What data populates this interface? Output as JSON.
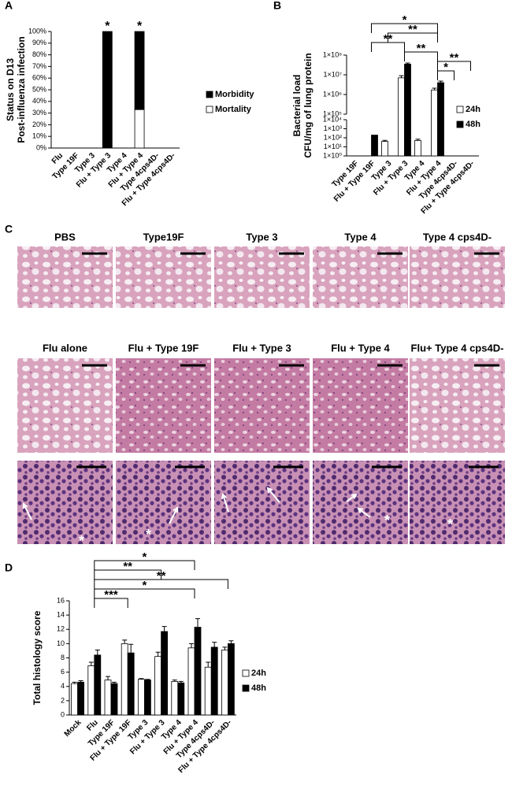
{
  "chart_data": [
    {
      "type": "stacked-bar",
      "panel": "A",
      "ylabel": [
        "Status on D13",
        "Post-influenza infection"
      ],
      "categories": [
        "Flu",
        "Type 19F",
        "Type 3",
        "Flu + Type 3",
        "Type 4",
        "Flu + Type 4",
        "Type 4cps4D-",
        "Flu + Type 4cps4D-"
      ],
      "series": [
        {
          "name": "Mortality",
          "color": "#ffffff",
          "values": [
            0,
            0,
            0,
            0,
            0,
            33,
            0,
            0
          ]
        },
        {
          "name": "Morbidity",
          "color": "#000000",
          "values": [
            0,
            0,
            0,
            100,
            0,
            67,
            0,
            0
          ]
        }
      ],
      "ylim": [
        0,
        100
      ],
      "yticks": [
        {
          "value": 0,
          "label": "0%"
        },
        {
          "value": 10,
          "label": "10%"
        },
        {
          "value": 20,
          "label": "20%"
        },
        {
          "value": 30,
          "label": "30%"
        },
        {
          "value": 40,
          "label": "40%"
        },
        {
          "value": 50,
          "label": "50%"
        },
        {
          "value": 60,
          "label": "60%"
        },
        {
          "value": 70,
          "label": "70%"
        },
        {
          "value": 80,
          "label": "80%"
        },
        {
          "value": 90,
          "label": "90%"
        },
        {
          "value": 100,
          "label": "100%"
        }
      ],
      "annotations": [
        {
          "text": "*",
          "category": 3
        },
        {
          "text": "*",
          "category": 5
        }
      ]
    },
    {
      "type": "bar",
      "panel": "B",
      "ylabel": [
        "Bacterial load",
        "CFU/mg of lung protein"
      ],
      "log": true,
      "categories": [
        "Type 19F",
        "Flu + Type 19F",
        "Type 3",
        "Flu + Type 3",
        "Type 4",
        "Flu + Type 4",
        "Type 4cps4D-",
        "Flu + Type 4cps4D-"
      ],
      "series": [
        {
          "name": "24h",
          "color": "#ffffff",
          "values": [
            null,
            null,
            40,
            7000000,
            50,
            1700000,
            null,
            null
          ],
          "errors": [
            null,
            null,
            12,
            2000000,
            20,
            400000,
            null,
            null
          ]
        },
        {
          "name": "48h",
          "color": "#000000",
          "values": [
            null,
            200,
            null,
            35000000,
            null,
            4000000,
            null,
            null
          ],
          "errors": [
            null,
            null,
            null,
            5000000,
            null,
            800000,
            null,
            null
          ]
        }
      ],
      "ylim": [
        1,
        100000000
      ],
      "ybreak": [
        10000,
        100000
      ],
      "yticks": [
        {
          "value": 1,
          "label": "1×10⁰"
        },
        {
          "value": 10,
          "label": "1×10¹"
        },
        {
          "value": 100,
          "label": "1×10²"
        },
        {
          "value": 1000,
          "label": "1×10³"
        },
        {
          "value": 10000,
          "label": "1×10⁴"
        },
        {
          "value": 100000,
          "label": "1×10⁵"
        },
        {
          "value": 1000000,
          "label": "1×10⁶"
        },
        {
          "value": 10000000,
          "label": "1×10⁷"
        },
        {
          "value": 100000000,
          "label": "1×10⁸"
        }
      ],
      "brackets": [
        {
          "label": "*",
          "between": [
            1,
            5
          ]
        },
        {
          "label": "**",
          "between": [
            2,
            5
          ]
        },
        {
          "label": "**",
          "between": [
            1,
            3
          ]
        },
        {
          "label": "**",
          "between": [
            3,
            5
          ]
        },
        {
          "label": "**",
          "between": [
            5,
            7
          ]
        },
        {
          "label": "*",
          "between": [
            5,
            6
          ]
        }
      ]
    },
    {
      "type": "bar",
      "panel": "D",
      "ylabel": "Total histology score",
      "categories": [
        "Mock",
        "Flu",
        "Type 19F",
        "Flu + Type 19F",
        "Type 3",
        "Flu + Type 3",
        "Type 4",
        "Flu + Type 4",
        "Type 4cps4D-",
        "Flu + Type 4cps4D-"
      ],
      "series": [
        {
          "name": "24h",
          "color": "#ffffff",
          "values": [
            4.4,
            6.9,
            4.9,
            10.0,
            5.0,
            8.2,
            4.7,
            9.4,
            6.7,
            9.1
          ],
          "errors": [
            0.2,
            0.5,
            0.5,
            0.5,
            0.1,
            0.6,
            0.2,
            0.6,
            0.7,
            0.4
          ]
        },
        {
          "name": "48h",
          "color": "#000000",
          "values": [
            4.6,
            8.4,
            4.4,
            8.7,
            4.9,
            11.7,
            4.5,
            12.3,
            9.5,
            10.0
          ],
          "errors": [
            0.2,
            0.7,
            0.2,
            1.2,
            0.1,
            0.7,
            0.2,
            1.2,
            0.7,
            0.4
          ]
        }
      ],
      "ylim": [
        0,
        16
      ],
      "yticks": [
        0,
        2,
        4,
        6,
        8,
        10,
        12,
        14,
        16
      ],
      "brackets": [
        {
          "label": "*",
          "between": [
            1,
            7
          ]
        },
        {
          "label": "**",
          "between": [
            1,
            5
          ]
        },
        {
          "label": "**",
          "between": [
            1,
            9
          ]
        },
        {
          "label": "*",
          "between": [
            1,
            7
          ]
        },
        {
          "label": "***",
          "between": [
            1,
            3
          ]
        }
      ]
    }
  ],
  "panel_c": {
    "label": "C",
    "row1": [
      "PBS",
      "Type19F",
      "Type 3",
      "Type 4",
      "Type 4 cps4D-"
    ],
    "row2": [
      "Flu alone",
      "Flu + Type 19F",
      "Flu + Type 3",
      "Flu + Type 4",
      "Flu+ Type 4 cps4D-"
    ],
    "closeup_mark": "*"
  }
}
